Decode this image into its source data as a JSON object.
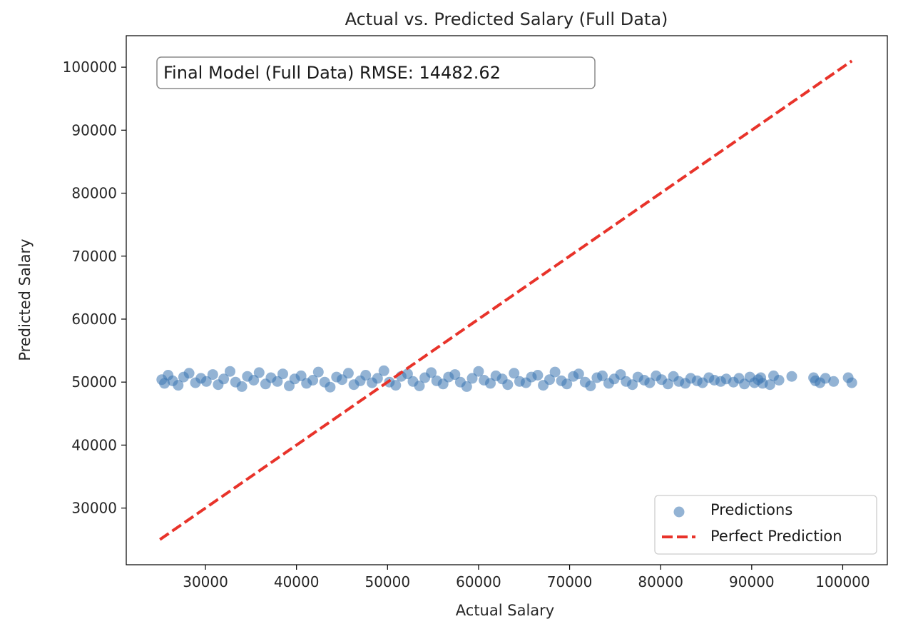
{
  "chart_data": {
    "type": "scatter",
    "title": "Actual vs. Predicted Salary (Full Data)",
    "xlabel": "Actual Salary",
    "ylabel": "Predicted Salary",
    "xlim": [
      21300,
      104900
    ],
    "ylim": [
      21000,
      105000
    ],
    "xticks": [
      30000,
      40000,
      50000,
      60000,
      70000,
      80000,
      90000,
      100000
    ],
    "yticks": [
      30000,
      40000,
      50000,
      60000,
      70000,
      80000,
      90000,
      100000
    ],
    "annotation": "Final Model (Full Data) RMSE: 14482.62",
    "legend_position": "lower-right",
    "grid": false,
    "series": [
      {
        "name": "Predictions",
        "type": "scatter",
        "color": "#3a75b0",
        "opacity": 0.55,
        "points": [
          [
            25200,
            50400
          ],
          [
            25500,
            49800
          ],
          [
            25900,
            51100
          ],
          [
            26400,
            50200
          ],
          [
            27000,
            49500
          ],
          [
            27600,
            50800
          ],
          [
            28200,
            51400
          ],
          [
            28900,
            49900
          ],
          [
            29500,
            50600
          ],
          [
            30100,
            50100
          ],
          [
            30800,
            51200
          ],
          [
            31400,
            49600
          ],
          [
            32000,
            50500
          ],
          [
            32700,
            51700
          ],
          [
            33300,
            50000
          ],
          [
            34000,
            49300
          ],
          [
            34600,
            50900
          ],
          [
            35300,
            50300
          ],
          [
            35900,
            51500
          ],
          [
            36600,
            49700
          ],
          [
            37200,
            50700
          ],
          [
            37900,
            50100
          ],
          [
            38500,
            51300
          ],
          [
            39200,
            49400
          ],
          [
            39800,
            50500
          ],
          [
            40500,
            51000
          ],
          [
            41100,
            49800
          ],
          [
            41800,
            50300
          ],
          [
            42400,
            51600
          ],
          [
            43100,
            50000
          ],
          [
            43700,
            49200
          ],
          [
            44400,
            50800
          ],
          [
            45000,
            50400
          ],
          [
            45700,
            51400
          ],
          [
            46300,
            49600
          ],
          [
            47000,
            50200
          ],
          [
            47600,
            51100
          ],
          [
            48300,
            49900
          ],
          [
            48900,
            50600
          ],
          [
            49600,
            51800
          ],
          [
            50200,
            50000
          ],
          [
            50900,
            49500
          ],
          [
            51500,
            50900
          ],
          [
            52200,
            51300
          ],
          [
            52800,
            50100
          ],
          [
            53500,
            49400
          ],
          [
            54100,
            50700
          ],
          [
            54800,
            51500
          ],
          [
            55400,
            50200
          ],
          [
            56100,
            49700
          ],
          [
            56700,
            50800
          ],
          [
            57400,
            51200
          ],
          [
            58000,
            50000
          ],
          [
            58700,
            49300
          ],
          [
            59300,
            50600
          ],
          [
            60000,
            51700
          ],
          [
            60600,
            50300
          ],
          [
            61300,
            49800
          ],
          [
            61900,
            51000
          ],
          [
            62600,
            50500
          ],
          [
            63200,
            49600
          ],
          [
            63900,
            51400
          ],
          [
            64500,
            50100
          ],
          [
            65200,
            49900
          ],
          [
            65800,
            50800
          ],
          [
            66500,
            51100
          ],
          [
            67100,
            49500
          ],
          [
            67800,
            50400
          ],
          [
            68400,
            51600
          ],
          [
            69100,
            50200
          ],
          [
            69700,
            49700
          ],
          [
            70400,
            50900
          ],
          [
            71000,
            51300
          ],
          [
            71700,
            50000
          ],
          [
            72300,
            49400
          ],
          [
            73000,
            50700
          ],
          [
            73600,
            51000
          ],
          [
            74300,
            49800
          ],
          [
            74900,
            50500
          ],
          [
            75600,
            51200
          ],
          [
            76200,
            50100
          ],
          [
            76900,
            49600
          ],
          [
            77500,
            50800
          ],
          [
            78200,
            50300
          ],
          [
            78800,
            49900
          ],
          [
            79500,
            51000
          ],
          [
            80100,
            50400
          ],
          [
            80800,
            49700
          ],
          [
            81400,
            50900
          ],
          [
            82000,
            50100
          ],
          [
            82700,
            49800
          ],
          [
            83300,
            50600
          ],
          [
            84000,
            50200
          ],
          [
            84600,
            49900
          ],
          [
            85300,
            50700
          ],
          [
            85900,
            50300
          ],
          [
            86600,
            50100
          ],
          [
            87200,
            50500
          ],
          [
            88000,
            50000
          ],
          [
            88600,
            50600
          ],
          [
            89200,
            49700
          ],
          [
            89800,
            50800
          ],
          [
            90300,
            49900
          ],
          [
            90700,
            50400
          ],
          [
            91000,
            50700
          ],
          [
            91200,
            49800
          ],
          [
            92000,
            49600
          ],
          [
            92400,
            51000
          ],
          [
            93000,
            50300
          ],
          [
            94400,
            50900
          ],
          [
            96800,
            50700
          ],
          [
            97000,
            50200
          ],
          [
            97500,
            49900
          ],
          [
            98100,
            50600
          ],
          [
            99000,
            50100
          ],
          [
            100600,
            50700
          ],
          [
            101000,
            49900
          ]
        ]
      },
      {
        "name": "Perfect Prediction",
        "type": "line",
        "color": "#e8332a",
        "dash": "dashed",
        "x": [
          25000,
          101000
        ],
        "y": [
          25000,
          101000
        ]
      }
    ]
  }
}
